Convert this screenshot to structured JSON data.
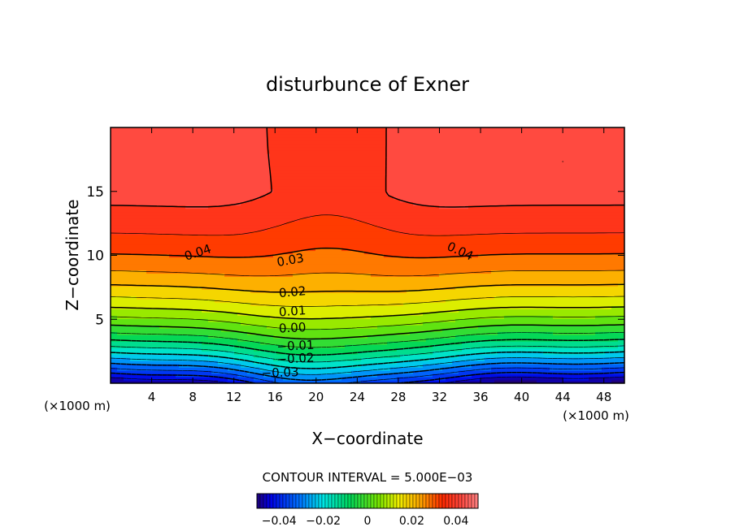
{
  "chart_data": {
    "type": "contour",
    "title": "disturbunce of Exner",
    "xlabel": "X−coordinate",
    "ylabel": "Z−coordinate",
    "x_unit": "(×1000 m)",
    "y_unit": "(×1000 m)",
    "xlim": [
      0,
      50
    ],
    "ylim": [
      0,
      20
    ],
    "xticks": [
      4,
      8,
      12,
      16,
      20,
      24,
      28,
      32,
      36,
      40,
      44,
      48
    ],
    "yticks": [
      5,
      10,
      15
    ],
    "contour_interval_text": "CONTOUR INTERVAL = 5.000E−03",
    "levels": [
      -0.045,
      -0.04,
      -0.035,
      -0.03,
      -0.025,
      -0.02,
      -0.015,
      -0.01,
      -0.005,
      0.0,
      0.005,
      0.01,
      0.015,
      0.02,
      0.025,
      0.03,
      0.035,
      0.04,
      0.045
    ],
    "contour_labels": [
      {
        "text": "0.04",
        "x": 8.5,
        "z": 10.2,
        "angle": -18
      },
      {
        "text": "0.04",
        "x": 34.0,
        "z": 10.3,
        "angle": 25
      },
      {
        "text": "0.03",
        "x": 17.5,
        "z": 9.6,
        "angle": -10
      },
      {
        "text": "0.02",
        "x": 17.7,
        "z": 7.1,
        "angle": -5
      },
      {
        "text": "0.01",
        "x": 17.7,
        "z": 5.6,
        "angle": -4
      },
      {
        "text": "0.00",
        "x": 17.7,
        "z": 4.3,
        "angle": -3
      },
      {
        "text": "−0.01",
        "x": 18.0,
        "z": 2.9,
        "angle": -3
      },
      {
        "text": "−0.02",
        "x": 18.0,
        "z": 1.9,
        "angle": -3
      },
      {
        "text": "−0.03",
        "x": 16.5,
        "z": 0.8,
        "angle": -2
      }
    ],
    "colorbar": {
      "min": -0.05,
      "max": 0.05,
      "tick_labels": [
        "−0.04",
        "−0.02",
        "0",
        "0.02",
        "0.04"
      ],
      "tick_values": [
        -0.04,
        -0.02,
        0,
        0.02,
        0.04
      ]
    }
  }
}
